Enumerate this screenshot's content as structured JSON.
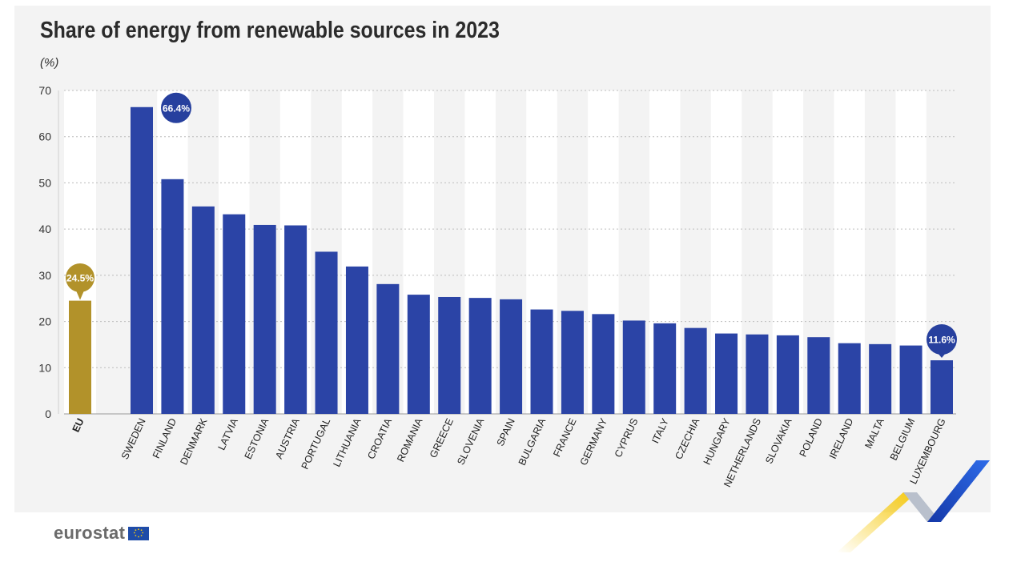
{
  "colors": {
    "background": "#f3f3f3",
    "bar_country": "#2b44a6",
    "bar_eu": "#b2922a",
    "callout_country": "#27409e",
    "callout_eu": "#b2922a",
    "stripe": "#ffffff",
    "brand_yellow": "#f6c90e",
    "brand_blue": "#1d4fd0"
  },
  "logo": {
    "text": "eurostat",
    "flag_icon": "eu-flag-icon"
  },
  "chart_data": {
    "type": "bar",
    "title": "Share of energy from renewable sources in 2023",
    "unit_label": "(%)",
    "xlabel": "",
    "ylabel": "",
    "ylim": [
      0,
      70
    ],
    "yticks": [
      0,
      10,
      20,
      30,
      40,
      50,
      60,
      70
    ],
    "grid": true,
    "eu": {
      "label": "EU",
      "value": 24.5,
      "callout": "24.5%"
    },
    "categories": [
      "SWEDEN",
      "FINLAND",
      "DENMARK",
      "LATVIA",
      "ESTONIA",
      "AUSTRIA",
      "PORTUGAL",
      "LITHUANIA",
      "CROATIA",
      "ROMANIA",
      "GREECE",
      "SLOVENIA",
      "SPAIN",
      "BULGARIA",
      "FRANCE",
      "GERMANY",
      "CYPRUS",
      "ITALY",
      "CZECHIA",
      "HUNGARY",
      "NETHERLANDS",
      "SLOVAKIA",
      "POLAND",
      "IRELAND",
      "MALTA",
      "BELGIUM",
      "LUXEMBOURG"
    ],
    "values": [
      66.4,
      50.8,
      44.9,
      43.2,
      40.9,
      40.8,
      35.1,
      31.9,
      28.1,
      25.8,
      25.3,
      25.1,
      24.8,
      22.6,
      22.3,
      21.6,
      20.2,
      19.6,
      18.6,
      17.4,
      17.2,
      17.0,
      16.6,
      15.3,
      15.1,
      14.8,
      11.6
    ],
    "callouts": [
      {
        "category": "SWEDEN",
        "text": "66.4%"
      },
      {
        "category": "LUXEMBOURG",
        "text": "11.6%"
      }
    ]
  }
}
